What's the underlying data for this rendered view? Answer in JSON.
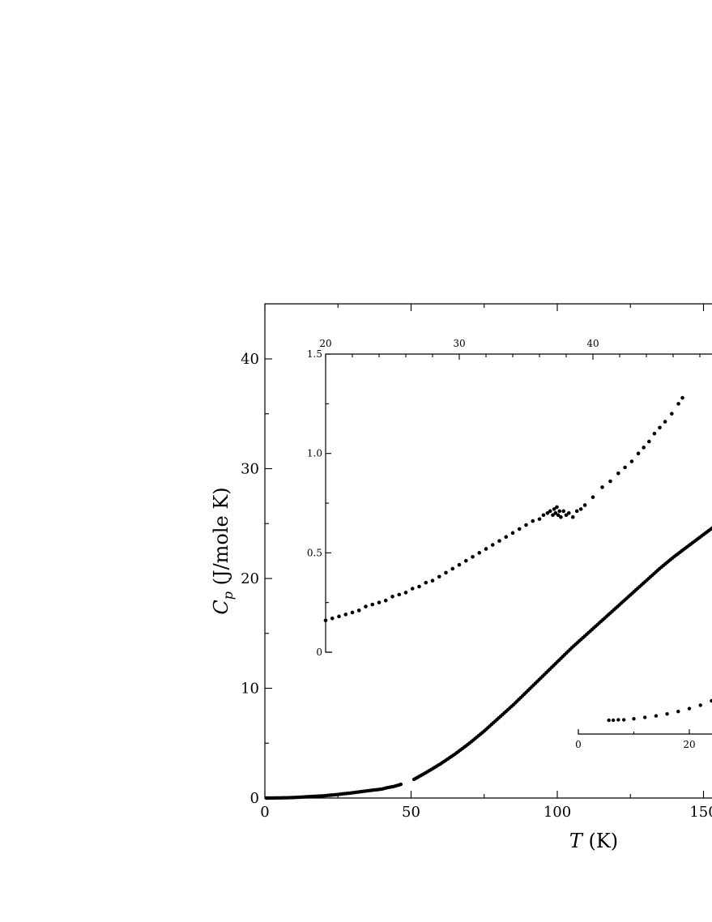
{
  "chart_data": [
    {
      "type": "scatter",
      "role": "main",
      "xlabel": {
        "var": "T",
        "unit": " (K)"
      },
      "ylabel": {
        "var": "C",
        "sub": "p",
        "unit": " (J/mole K)"
      },
      "xlim": [
        0,
        155
      ],
      "ylim": [
        0,
        45
      ],
      "xticks": [
        0,
        50,
        100,
        150
      ],
      "xtick_labels": [
        "0",
        "50",
        "100",
        "150"
      ],
      "yticks": [
        0,
        10,
        20,
        30,
        40
      ],
      "ytick_labels": [
        "0",
        "10",
        "20",
        "30",
        "40"
      ],
      "clipped_right": true,
      "series": [
        {
          "x": [
            0.5,
            2,
            4,
            6,
            8,
            10,
            12,
            14,
            16,
            18,
            20,
            22,
            24,
            26,
            28,
            30,
            32,
            34,
            36,
            38,
            40,
            42,
            44,
            46,
            47,
            51,
            55,
            60,
            65,
            70,
            75,
            80,
            85,
            90,
            95,
            100,
            105,
            110,
            115,
            120,
            125,
            130,
            135,
            140,
            145,
            150,
            153
          ],
          "y": [
            0.0,
            0.0,
            0.01,
            0.02,
            0.03,
            0.05,
            0.08,
            0.11,
            0.14,
            0.17,
            0.2,
            0.25,
            0.3,
            0.36,
            0.42,
            0.48,
            0.55,
            0.62,
            0.69,
            0.75,
            0.82,
            0.95,
            1.05,
            1.2,
            1.3,
            1.7,
            2.3,
            3.1,
            4.0,
            5.0,
            6.1,
            7.3,
            8.5,
            9.8,
            11.1,
            12.4,
            13.7,
            14.9,
            16.1,
            17.3,
            18.5,
            19.7,
            20.9,
            22.0,
            23.0,
            24.0,
            24.6
          ]
        }
      ]
    },
    {
      "type": "scatter",
      "role": "inset-upper",
      "xlim": [
        20,
        48
      ],
      "ylim": [
        0,
        1.5
      ],
      "xticks": [
        20,
        30,
        40
      ],
      "xtick_labels": [
        "20",
        "30",
        "40"
      ],
      "yticks": [
        0,
        0.5,
        1.0,
        1.5
      ],
      "ytick_labels": [
        "0",
        "0.5",
        "1.0",
        "1.5"
      ],
      "series": [
        {
          "x": [
            20.0,
            20.5,
            21.0,
            21.5,
            22.0,
            22.5,
            23.0,
            23.5,
            24.0,
            24.5,
            25.0,
            25.5,
            26.0,
            26.5,
            27.0,
            27.5,
            28.0,
            28.5,
            29.0,
            29.5,
            30.0,
            30.5,
            31.0,
            31.5,
            32.0,
            32.5,
            33.0,
            33.5,
            34.0,
            34.5,
            35.0,
            35.5,
            36.0,
            36.3,
            36.6,
            36.8,
            37.0,
            37.1,
            37.2,
            37.3,
            37.4,
            37.5,
            37.6,
            37.8,
            38.0,
            38.2,
            38.5,
            38.8,
            39.1,
            39.4,
            40.0,
            40.7,
            41.3,
            41.9,
            42.4,
            42.9,
            43.4,
            43.8,
            44.2,
            44.6,
            45.0,
            45.4,
            45.9,
            46.4,
            46.7
          ],
          "y": [
            0.16,
            0.17,
            0.18,
            0.19,
            0.2,
            0.21,
            0.23,
            0.24,
            0.25,
            0.26,
            0.28,
            0.29,
            0.3,
            0.32,
            0.33,
            0.35,
            0.36,
            0.38,
            0.4,
            0.42,
            0.44,
            0.46,
            0.48,
            0.5,
            0.52,
            0.54,
            0.56,
            0.58,
            0.6,
            0.62,
            0.64,
            0.66,
            0.67,
            0.69,
            0.7,
            0.71,
            0.69,
            0.72,
            0.7,
            0.73,
            0.69,
            0.71,
            0.68,
            0.71,
            0.69,
            0.7,
            0.68,
            0.71,
            0.72,
            0.74,
            0.78,
            0.83,
            0.86,
            0.9,
            0.93,
            0.96,
            1.0,
            1.03,
            1.06,
            1.1,
            1.13,
            1.16,
            1.2,
            1.25,
            1.28
          ]
        }
      ]
    },
    {
      "type": "scatter",
      "role": "inset-lower",
      "xlim": [
        0,
        24
      ],
      "xticks": [
        0,
        20
      ],
      "xtick_labels": [
        "0",
        "20"
      ],
      "series": [
        {
          "x": [
            5.5,
            6.3,
            7.2,
            8.2,
            10,
            12,
            14,
            16,
            18,
            20,
            22,
            24
          ],
          "y": [
            0.0,
            0.0,
            0.01,
            0.01,
            0.03,
            0.06,
            0.09,
            0.13,
            0.18,
            0.24,
            0.31,
            0.4
          ]
        }
      ]
    }
  ]
}
